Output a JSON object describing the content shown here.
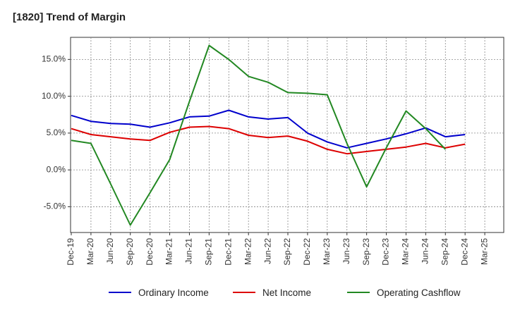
{
  "chart_data": {
    "type": "line",
    "title": "[1820]  Trend of Margin",
    "xlabel": "",
    "ylabel": "",
    "x": [
      "Dec-19",
      "Mar-20",
      "Jun-20",
      "Sep-20",
      "Dec-20",
      "Mar-21",
      "Jun-21",
      "Sep-21",
      "Dec-21",
      "Mar-22",
      "Jun-22",
      "Sep-22",
      "Dec-22",
      "Mar-23",
      "Jun-23",
      "Sep-23",
      "Dec-23",
      "Mar-24",
      "Jun-24",
      "Sep-24",
      "Dec-24",
      "Mar-25"
    ],
    "ylim": [
      -8.5,
      18.0
    ],
    "yticks": [
      -5.0,
      0.0,
      5.0,
      10.0,
      15.0
    ],
    "ytick_labels": [
      "-5.0%",
      "0.0%",
      "5.0%",
      "10.0%",
      "15.0%"
    ],
    "grid": true,
    "legend_position": "bottom",
    "series": [
      {
        "name": "Ordinary Income",
        "color": "#0000cc",
        "values": [
          7.4,
          6.6,
          6.3,
          6.2,
          5.8,
          6.4,
          7.2,
          7.3,
          8.1,
          7.2,
          6.9,
          7.1,
          5.0,
          3.8,
          3.0,
          3.6,
          4.2,
          4.9,
          5.7,
          4.5,
          4.8,
          null
        ]
      },
      {
        "name": "Net Income",
        "color": "#dd0000",
        "values": [
          5.6,
          4.8,
          4.5,
          4.2,
          4.0,
          5.1,
          5.8,
          5.9,
          5.6,
          4.7,
          4.4,
          4.6,
          3.9,
          2.8,
          2.2,
          2.5,
          2.8,
          3.1,
          3.6,
          3.0,
          3.5,
          null
        ]
      },
      {
        "name": "Operating Cashflow",
        "color": "#228822",
        "values": [
          4.0,
          3.6,
          -1.9,
          -7.5,
          -3.1,
          1.4,
          9.3,
          16.9,
          15.0,
          12.7,
          11.9,
          10.5,
          10.4,
          10.2,
          3.6,
          -2.3,
          3.0,
          8.0,
          5.6,
          2.8,
          null,
          null
        ]
      }
    ]
  }
}
